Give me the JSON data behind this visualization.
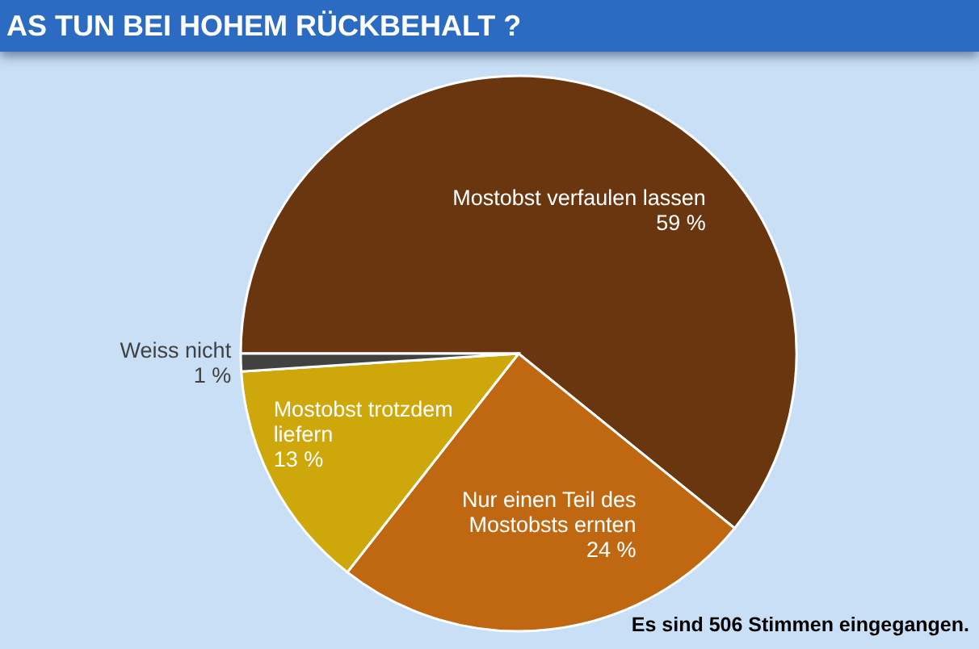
{
  "chart_data": {
    "type": "pie",
    "title": "AS TUN BEI HOHEM RÜCKBEHALT ?",
    "categories": [
      "Mostobst verfaulen lassen",
      "Nur einen Teil des Mostobsts ernten",
      "Mostobst trotzdem liefern",
      "Weiss nicht"
    ],
    "values": [
      59,
      24,
      13,
      1
    ],
    "colors": [
      "#6a360f",
      "#bf6811",
      "#cea70b",
      "#414141"
    ],
    "value_labels": [
      "59 %",
      "24 %",
      "13 %",
      "1 %"
    ],
    "annotations": [
      "Es sind 506 Stimmen eingegangen."
    ]
  }
}
